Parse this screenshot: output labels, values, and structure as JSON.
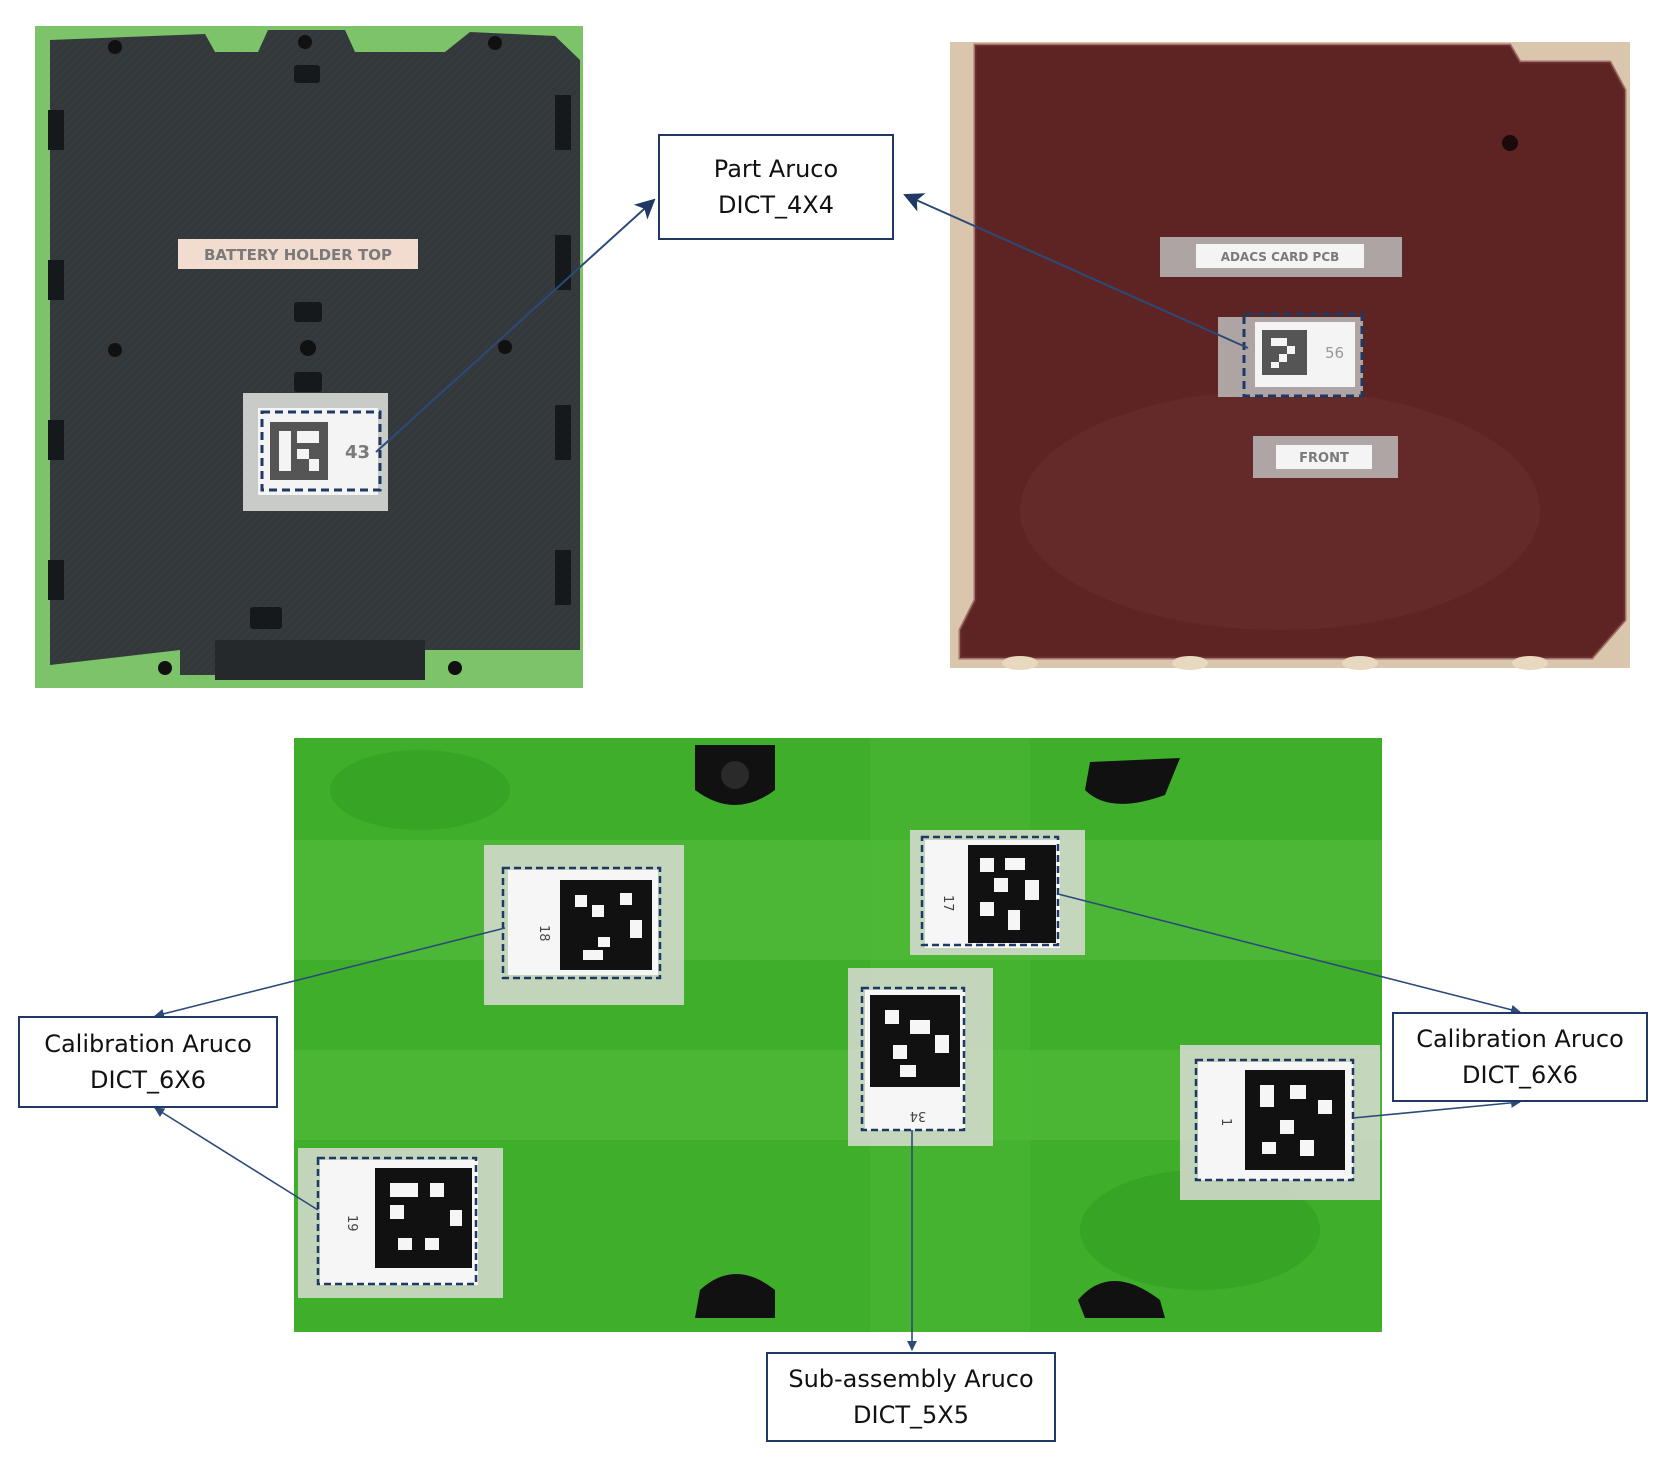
{
  "colors": {
    "arrow": "#2b4a7a",
    "callout_border": "#1f3864",
    "marker_dash": "#1f3864",
    "photo_black_plate": "#33383b",
    "photo_brown_plate": "#5e2424",
    "photo_green_board": "#3fae2a"
  },
  "photos": {
    "battery_holder": {
      "label": "BATTERY HOLDER TOP",
      "marker_id": "43"
    },
    "adacs_card": {
      "label_top": "ADACS CARD PCB",
      "marker_id": "56",
      "label_bottom": "FRONT"
    },
    "assembly_board": {
      "marker_ids": [
        "18",
        "17",
        "34",
        "1",
        "19"
      ]
    }
  },
  "callouts": {
    "part": {
      "line1": "Part Aruco",
      "line2": "DICT_4X4"
    },
    "calibration_left": {
      "line1": "Calibration Aruco",
      "line2": "DICT_6X6"
    },
    "calibration_right": {
      "line1": "Calibration Aruco",
      "line2": "DICT_6X6"
    },
    "subassembly": {
      "line1": "Sub-assembly Aruco",
      "line2": "DICT_5X5"
    }
  }
}
